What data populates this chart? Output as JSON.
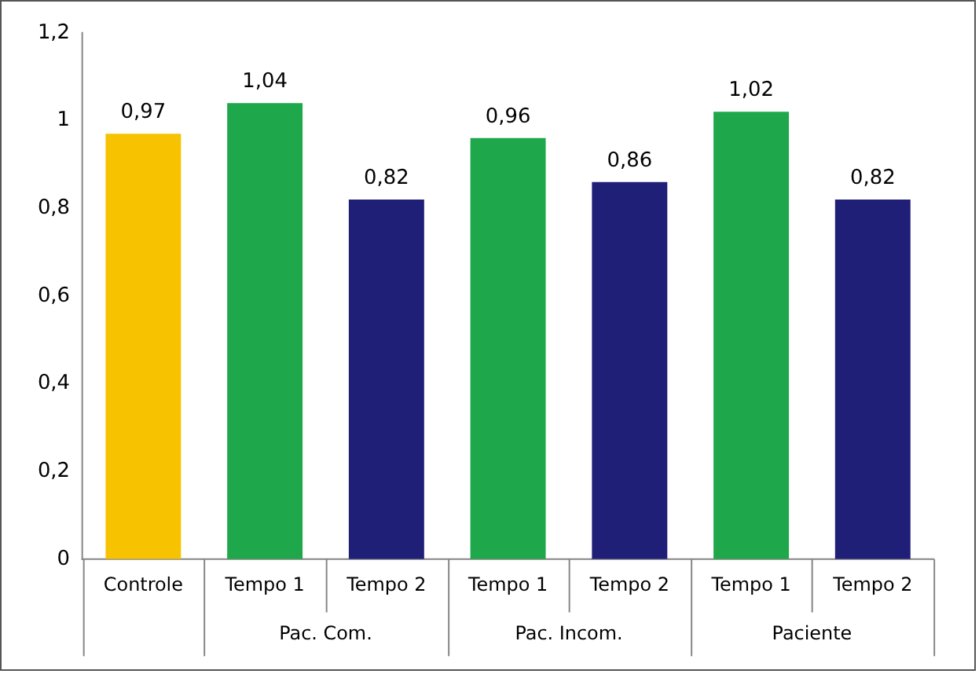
{
  "chart_data": {
    "type": "bar",
    "categories": [
      "Controle",
      "Tempo 1",
      "Tempo 2",
      "Tempo 1",
      "Tempo 2",
      "Tempo 1",
      "Tempo 2"
    ],
    "values": [
      0.97,
      1.04,
      0.82,
      0.96,
      0.86,
      1.02,
      0.82
    ],
    "colors": [
      "#f7c300",
      "#1ea84b",
      "#1f1f78",
      "#1ea84b",
      "#1f1f78",
      "#1ea84b",
      "#1f1f78"
    ],
    "ylim": [
      0,
      1.2
    ],
    "yticks": [
      0,
      {
        "value": 0.2,
        "label": "0,2"
      },
      {
        "value": 0.4,
        "label": "0,4"
      },
      {
        "value": 0.6,
        "label": "0,6"
      },
      {
        "value": 0.8,
        "label": "0,8"
      },
      1,
      {
        "value": 1.2,
        "label": "1,2"
      }
    ],
    "value_labels": [
      "0,97",
      "1,04",
      "0,82",
      "0,96",
      "0,86",
      "1,02",
      "0,82"
    ],
    "grid": false,
    "legend": false,
    "annotations": [
      "Pac. Com.",
      "Pac. Incom.",
      "Paciente"
    ]
  }
}
